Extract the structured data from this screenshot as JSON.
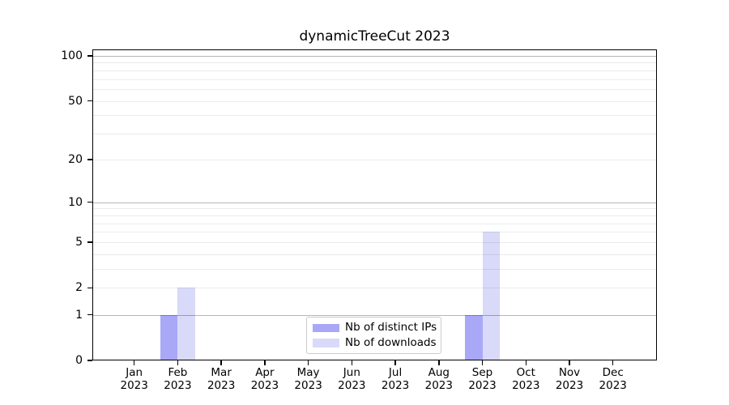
{
  "chart_data": {
    "type": "bar",
    "title": "dynamicTreeCut 2023",
    "x": [
      "Jan",
      "Feb",
      "Mar",
      "Apr",
      "May",
      "Jun",
      "Jul",
      "Aug",
      "Sep",
      "Oct",
      "Nov",
      "Dec"
    ],
    "x_year": "2023",
    "series": [
      {
        "name": "Nb of distinct IPs",
        "color": "#a8a8f7",
        "values": [
          0,
          1,
          0,
          0,
          0,
          0,
          0,
          0,
          1,
          0,
          0,
          0
        ]
      },
      {
        "name": "Nb of downloads",
        "color": "#d9d9f9",
        "values": [
          0,
          2,
          0,
          0,
          0,
          0,
          0,
          0,
          6,
          0,
          0,
          0
        ]
      }
    ],
    "y_axis": {
      "scale": "log1p",
      "lim": [
        0,
        100
      ],
      "ticks": [
        0,
        1,
        2,
        5,
        10,
        20,
        50,
        100
      ],
      "minor_gridlines": [
        2,
        3,
        4,
        5,
        6,
        7,
        8,
        9,
        20,
        30,
        40,
        50,
        60,
        70,
        80,
        90
      ],
      "major_gridlines": [
        1,
        10,
        100
      ]
    },
    "legend": {
      "position": "lower center"
    },
    "colors": {
      "major_grid": "#b6b6b6",
      "minor_grid": "#ebebeb",
      "axis": "#000000",
      "background": "#ffffff"
    }
  }
}
